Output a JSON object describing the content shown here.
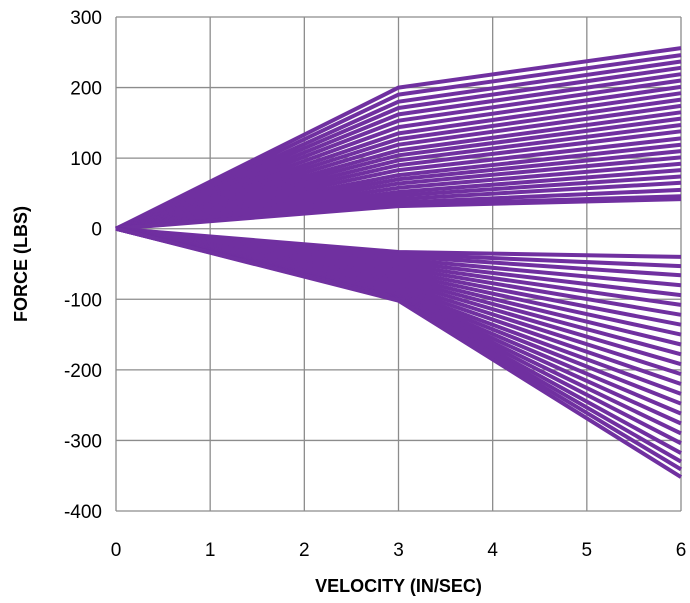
{
  "chart_data": {
    "type": "line",
    "title": "",
    "xlabel": "VELOCITY (IN/SEC)",
    "ylabel": "FORCE (LBS)",
    "xlim": [
      0,
      6
    ],
    "ylim": [
      -400,
      300
    ],
    "x_ticks": [
      0,
      1,
      2,
      3,
      4,
      5,
      6
    ],
    "y_ticks": [
      300,
      200,
      100,
      0,
      -100,
      -200,
      -300,
      -400
    ],
    "x_tick_labels": [
      "0",
      "1",
      "2",
      "3",
      "4",
      "5",
      "6"
    ],
    "y_tick_labels": [
      "300",
      "200",
      "100",
      "0",
      "-100",
      "-200",
      "-300",
      "-400"
    ],
    "grid": true,
    "legend": "none",
    "series_color": "#7030A0",
    "x": [
      0,
      3,
      6
    ],
    "series": [
      {
        "values": [
          0,
          200,
          256
        ]
      },
      {
        "values": [
          0,
          190,
          246
        ]
      },
      {
        "values": [
          0,
          180,
          237
        ]
      },
      {
        "values": [
          0,
          171,
          228
        ]
      },
      {
        "values": [
          0,
          162,
          219
        ]
      },
      {
        "values": [
          0,
          153,
          210
        ]
      },
      {
        "values": [
          0,
          144,
          201
        ]
      },
      {
        "values": [
          0,
          135,
          192
        ]
      },
      {
        "values": [
          0,
          127,
          183
        ]
      },
      {
        "values": [
          0,
          119,
          174
        ]
      },
      {
        "values": [
          0,
          111,
          165
        ]
      },
      {
        "values": [
          0,
          104,
          156
        ]
      },
      {
        "values": [
          0,
          97,
          147
        ]
      },
      {
        "values": [
          0,
          90,
          138
        ]
      },
      {
        "values": [
          0,
          83,
          128
        ]
      },
      {
        "values": [
          0,
          76,
          119
        ]
      },
      {
        "values": [
          0,
          70,
          110
        ]
      },
      {
        "values": [
          0,
          64,
          101
        ]
      },
      {
        "values": [
          0,
          58,
          92
        ]
      },
      {
        "values": [
          0,
          52,
          83
        ]
      },
      {
        "values": [
          0,
          47,
          74
        ]
      },
      {
        "values": [
          0,
          42,
          65
        ]
      },
      {
        "values": [
          0,
          37,
          55
        ]
      },
      {
        "values": [
          0,
          34,
          46
        ]
      },
      {
        "values": [
          0,
          32,
          42
        ]
      },
      {
        "values": [
          0,
          -33,
          -40
        ]
      },
      {
        "values": [
          0,
          -36,
          -53
        ]
      },
      {
        "values": [
          0,
          -39,
          -66
        ]
      },
      {
        "values": [
          0,
          -43,
          -80
        ]
      },
      {
        "values": [
          0,
          -47,
          -94
        ]
      },
      {
        "values": [
          0,
          -51,
          -108
        ]
      },
      {
        "values": [
          0,
          -55,
          -122
        ]
      },
      {
        "values": [
          0,
          -59,
          -136
        ]
      },
      {
        "values": [
          0,
          -63,
          -150
        ]
      },
      {
        "values": [
          0,
          -67,
          -164
        ]
      },
      {
        "values": [
          0,
          -71,
          -178
        ]
      },
      {
        "values": [
          0,
          -75,
          -192
        ]
      },
      {
        "values": [
          0,
          -79,
          -206
        ]
      },
      {
        "values": [
          0,
          -83,
          -220
        ]
      },
      {
        "values": [
          0,
          -87,
          -234
        ]
      },
      {
        "values": [
          0,
          -90,
          -248
        ]
      },
      {
        "values": [
          0,
          -93,
          -262
        ]
      },
      {
        "values": [
          0,
          -95,
          -276
        ]
      },
      {
        "values": [
          0,
          -97,
          -290
        ]
      },
      {
        "values": [
          0,
          -98,
          -304
        ]
      },
      {
        "values": [
          0,
          -99,
          -318
        ]
      },
      {
        "values": [
          0,
          -100,
          -330
        ]
      },
      {
        "values": [
          0,
          -101,
          -341
        ]
      },
      {
        "values": [
          0,
          -102,
          -352
        ]
      }
    ]
  }
}
